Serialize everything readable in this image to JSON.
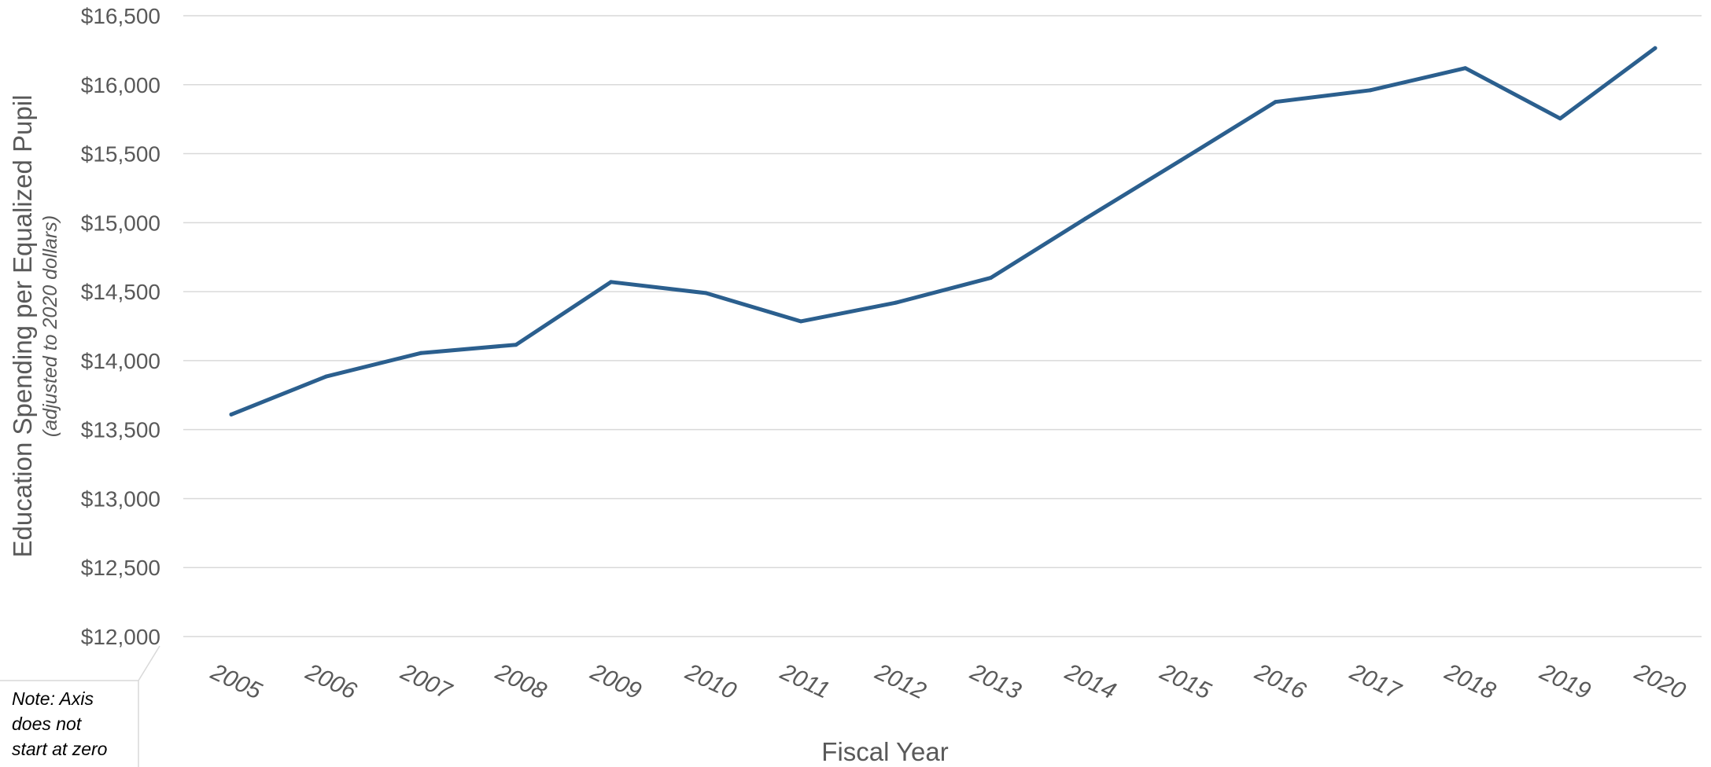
{
  "chart_data": {
    "type": "line",
    "xlabel": "Fiscal Year",
    "ylabel": "Education Spending per Equalized Pupil",
    "ylabel_sub": "(adjusted to 2020 dollars)",
    "ylim": [
      12000,
      16500
    ],
    "y_ticks": [
      12000,
      12500,
      13000,
      13500,
      14000,
      14500,
      15000,
      15500,
      16000,
      16500
    ],
    "y_tick_labels": [
      "$12,000",
      "$12,500",
      "$13,000",
      "$13,500",
      "$14,000",
      "$14,500",
      "$15,000",
      "$15,500",
      "$16,000",
      "$16,500"
    ],
    "categories": [
      "2005",
      "2006",
      "2007",
      "2008",
      "2009",
      "2010",
      "2011",
      "2012",
      "2013",
      "2014",
      "2015",
      "2016",
      "2017",
      "2018",
      "2019",
      "2020"
    ],
    "series": [
      {
        "values": [
          13610,
          13885,
          14055,
          14115,
          14570,
          14490,
          14285,
          14420,
          14600,
          15030,
          15450,
          15875,
          15960,
          16120,
          15755,
          16265
        ],
        "color": "#2B5F8E"
      }
    ],
    "grid": true,
    "legend": "none",
    "note": [
      "Note: Axis",
      "does not",
      "start at zero"
    ]
  }
}
